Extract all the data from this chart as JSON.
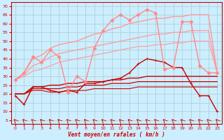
{
  "xlabel": "Vent moyen/en rafales ( km/h )",
  "background_color": "#cceeff",
  "grid_color": "#aacccc",
  "x_ticks": [
    0,
    1,
    2,
    3,
    4,
    5,
    6,
    7,
    8,
    9,
    10,
    11,
    12,
    13,
    14,
    15,
    16,
    17,
    18,
    19,
    20,
    21,
    22,
    23
  ],
  "y_ticks": [
    5,
    10,
    15,
    20,
    25,
    30,
    35,
    40,
    45,
    50,
    55,
    60,
    65,
    70
  ],
  "ylim": [
    3,
    72
  ],
  "xlim": [
    -0.5,
    23.5
  ],
  "lines": [
    {
      "comment": "dark red jagged with + markers - actual mean wind",
      "x": [
        0,
        1,
        2,
        3,
        4,
        5,
        6,
        7,
        8,
        9,
        10,
        11,
        12,
        13,
        14,
        15,
        16,
        17,
        18,
        19,
        20,
        21,
        22,
        23
      ],
      "y": [
        19,
        14,
        24,
        24,
        22,
        21,
        22,
        21,
        26,
        26,
        27,
        28,
        29,
        32,
        37,
        40,
        39,
        38,
        35,
        35,
        26,
        19,
        19,
        10
      ],
      "color": "#cc0000",
      "lw": 1.0,
      "marker": "+",
      "ms": 3.5,
      "zorder": 5
    },
    {
      "comment": "dark red smooth upper band",
      "x": [
        0,
        1,
        2,
        3,
        4,
        5,
        6,
        7,
        8,
        9,
        10,
        11,
        12,
        13,
        14,
        15,
        16,
        17,
        18,
        19,
        20,
        21,
        22,
        23
      ],
      "y": [
        20,
        20,
        24,
        24,
        25,
        25,
        26,
        26,
        27,
        27,
        27,
        28,
        28,
        29,
        29,
        30,
        30,
        30,
        30,
        30,
        30,
        30,
        30,
        30
      ],
      "color": "#cc0000",
      "lw": 1.0,
      "marker": null,
      "ms": 0,
      "zorder": 4
    },
    {
      "comment": "dark red smooth middle band",
      "x": [
        0,
        1,
        2,
        3,
        4,
        5,
        6,
        7,
        8,
        9,
        10,
        11,
        12,
        13,
        14,
        15,
        16,
        17,
        18,
        19,
        20,
        21,
        22,
        23
      ],
      "y": [
        20,
        20,
        23,
        23,
        23,
        23,
        24,
        24,
        25,
        25,
        25,
        26,
        26,
        26,
        27,
        27,
        27,
        27,
        27,
        27,
        27,
        27,
        27,
        27
      ],
      "color": "#cc0000",
      "lw": 0.9,
      "marker": null,
      "ms": 0,
      "zorder": 4
    },
    {
      "comment": "dark red smooth lower band",
      "x": [
        0,
        1,
        2,
        3,
        4,
        5,
        6,
        7,
        8,
        9,
        10,
        11,
        12,
        13,
        14,
        15,
        16,
        17,
        18,
        19,
        20,
        21,
        22,
        23
      ],
      "y": [
        20,
        20,
        22,
        22,
        21,
        21,
        22,
        22,
        22,
        23,
        23,
        23,
        23,
        23,
        24,
        24,
        24,
        24,
        24,
        24,
        24,
        24,
        24,
        24
      ],
      "color": "#cc0000",
      "lw": 0.8,
      "marker": null,
      "ms": 0,
      "zorder": 4
    },
    {
      "comment": "pink jagged with diamond markers - actual gusts",
      "x": [
        0,
        1,
        2,
        3,
        4,
        5,
        6,
        7,
        8,
        9,
        10,
        11,
        12,
        13,
        14,
        15,
        16,
        17,
        18,
        19,
        20,
        21,
        22,
        23
      ],
      "y": [
        28,
        32,
        41,
        38,
        45,
        41,
        21,
        30,
        27,
        46,
        56,
        62,
        65,
        62,
        65,
        68,
        66,
        34,
        35,
        61,
        61,
        36,
        32,
        32
      ],
      "color": "#ff8888",
      "lw": 1.0,
      "marker": "D",
      "ms": 2.5,
      "zorder": 5
    },
    {
      "comment": "pink smooth upper envelope",
      "x": [
        0,
        1,
        2,
        3,
        4,
        5,
        6,
        7,
        8,
        9,
        10,
        11,
        12,
        13,
        14,
        15,
        16,
        17,
        18,
        19,
        20,
        21,
        22,
        23
      ],
      "y": [
        28,
        32,
        40,
        42,
        46,
        48,
        49,
        50,
        52,
        54,
        55,
        57,
        58,
        60,
        61,
        62,
        63,
        63,
        64,
        64,
        65,
        65,
        65,
        32
      ],
      "color": "#ff9999",
      "lw": 1.0,
      "marker": null,
      "ms": 0,
      "zorder": 3
    },
    {
      "comment": "pink smooth middle envelope",
      "x": [
        0,
        1,
        2,
        3,
        4,
        5,
        6,
        7,
        8,
        9,
        10,
        11,
        12,
        13,
        14,
        15,
        16,
        17,
        18,
        19,
        20,
        21,
        22,
        23
      ],
      "y": [
        28,
        31,
        36,
        38,
        41,
        43,
        44,
        45,
        46,
        47,
        48,
        49,
        50,
        51,
        52,
        53,
        54,
        54,
        55,
        55,
        56,
        56,
        56,
        32
      ],
      "color": "#ff9999",
      "lw": 0.9,
      "marker": null,
      "ms": 0,
      "zorder": 3
    },
    {
      "comment": "pink smooth lower envelope",
      "x": [
        0,
        1,
        2,
        3,
        4,
        5,
        6,
        7,
        8,
        9,
        10,
        11,
        12,
        13,
        14,
        15,
        16,
        17,
        18,
        19,
        20,
        21,
        22,
        23
      ],
      "y": [
        28,
        30,
        33,
        34,
        36,
        38,
        39,
        40,
        41,
        42,
        43,
        44,
        45,
        46,
        47,
        47,
        48,
        48,
        49,
        49,
        50,
        50,
        50,
        32
      ],
      "color": "#ff9999",
      "lw": 0.8,
      "marker": null,
      "ms": 0,
      "zorder": 3
    }
  ]
}
